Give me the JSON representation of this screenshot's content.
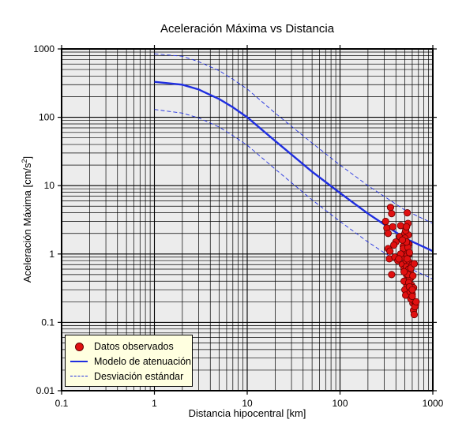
{
  "chart_data": {
    "type": "scatter",
    "title": "Aceleración Máxima vs Distancia",
    "xlabel": "Distancia hipocentral [km]",
    "ylabel_prefix": "Aceleración Máxima [cm/s",
    "ylabel_sup": "2",
    "ylabel_suffix": "]",
    "xscale": "log",
    "yscale": "log",
    "xlim": [
      0.1,
      1000
    ],
    "ylim": [
      0.01,
      1000
    ],
    "x_tick_labels": [
      "0.1",
      "1",
      "10",
      "100",
      "1000"
    ],
    "y_tick_labels": [
      "0.01",
      "0.1",
      "1",
      "10",
      "100",
      "1000"
    ],
    "grid": true,
    "legend_position": "bottom-left",
    "colors": {
      "plot_background": "#ececec",
      "points": "#e01010",
      "model_line": "#1f2ee0",
      "legend_background": "#ffffe0"
    },
    "legend": [
      {
        "label": "Datos observados",
        "symbol": "dot"
      },
      {
        "label": "Modelo de atenuación",
        "symbol": "solid-line"
      },
      {
        "label": "Desviación estándar",
        "symbol": "dashed-line"
      }
    ],
    "series": [
      {
        "name": "Modelo de atenuación",
        "style": "solid",
        "x": [
          1,
          2,
          3,
          5,
          7,
          10,
          20,
          50,
          100,
          200,
          500,
          1000
        ],
        "y": [
          330,
          300,
          255,
          185,
          140,
          100,
          45,
          16,
          7.8,
          3.9,
          1.7,
          1.1
        ]
      },
      {
        "name": "Desviación estándar (superior)",
        "style": "dashed",
        "x": [
          1,
          2,
          3,
          5,
          7,
          10,
          20,
          50,
          100,
          200,
          500,
          1000
        ],
        "y": [
          850,
          780,
          650,
          480,
          360,
          260,
          115,
          42,
          20,
          10,
          4.4,
          2.8
        ]
      },
      {
        "name": "Desviación estándar (inferior)",
        "style": "dashed",
        "x": [
          1,
          2,
          3,
          5,
          7,
          10,
          20,
          50,
          100,
          200,
          500,
          1000
        ],
        "y": [
          130,
          115,
          98,
          72,
          54,
          39,
          17.5,
          6.2,
          3.0,
          1.5,
          0.66,
          0.43
        ]
      },
      {
        "name": "Datos observados",
        "style": "points",
        "x": [
          310,
          320,
          330,
          340,
          350,
          360,
          370,
          330,
          345,
          390,
          400,
          420,
          440,
          450,
          460,
          470,
          480,
          490,
          500,
          505,
          510,
          515,
          520,
          525,
          530,
          540,
          545,
          550,
          555,
          560,
          570,
          580,
          590,
          600,
          610,
          620,
          630,
          640,
          650,
          470,
          480,
          490,
          500,
          510,
          520,
          530,
          540,
          550,
          560,
          570,
          580,
          600,
          620,
          640,
          660,
          500,
          510,
          520,
          530,
          540,
          550,
          560,
          580,
          600,
          610,
          630,
          520,
          560,
          600,
          490,
          470,
          450,
          430,
          380,
          360
        ],
        "y": [
          3.0,
          2.4,
          1.2,
          0.85,
          4.8,
          3.9,
          2.5,
          2.0,
          1.1,
          0.9,
          1.5,
          0.8,
          1.8,
          2.6,
          1.0,
          0.7,
          1.3,
          0.6,
          2.0,
          1.6,
          1.1,
          0.8,
          0.5,
          0.35,
          4.0,
          2.8,
          1.9,
          1.4,
          1.0,
          0.75,
          0.55,
          0.45,
          0.35,
          0.26,
          0.19,
          0.15,
          0.13,
          0.2,
          0.18,
          0.9,
          1.2,
          0.4,
          0.3,
          0.25,
          0.65,
          0.95,
          1.25,
          0.6,
          0.42,
          0.28,
          0.22,
          0.7,
          0.32,
          0.17,
          0.2,
          1.7,
          2.2,
          1.5,
          0.85,
          0.5,
          0.38,
          0.33,
          0.62,
          0.24,
          0.48,
          0.72,
          2.5,
          1.05,
          0.3,
          0.55,
          1.6,
          1.0,
          0.85,
          1.35,
          0.5
        ]
      }
    ]
  }
}
